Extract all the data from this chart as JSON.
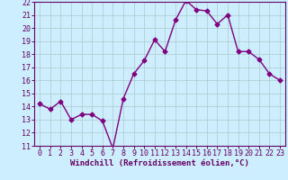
{
  "x": [
    0,
    1,
    2,
    3,
    4,
    5,
    6,
    7,
    8,
    9,
    10,
    11,
    12,
    13,
    14,
    15,
    16,
    17,
    18,
    19,
    20,
    21,
    22,
    23
  ],
  "y": [
    14.2,
    13.8,
    14.4,
    13.0,
    13.4,
    13.4,
    12.9,
    10.8,
    14.6,
    16.5,
    17.5,
    19.1,
    18.2,
    20.6,
    22.1,
    21.4,
    21.3,
    20.3,
    21.0,
    18.2,
    18.2,
    17.6,
    16.5,
    16.0
  ],
  "line_color": "#800080",
  "marker": "D",
  "marker_size": 2.5,
  "line_width": 1.0,
  "bg_color": "#cceeff",
  "grid_color": "#aacccc",
  "xlabel": "Windchill (Refroidissement éolien,°C)",
  "xlabel_fontsize": 6.5,
  "ylim": [
    11,
    22
  ],
  "xlim": [
    -0.5,
    23.5
  ],
  "yticks": [
    11,
    12,
    13,
    14,
    15,
    16,
    17,
    18,
    19,
    20,
    21,
    22
  ],
  "xticks": [
    0,
    1,
    2,
    3,
    4,
    5,
    6,
    7,
    8,
    9,
    10,
    11,
    12,
    13,
    14,
    15,
    16,
    17,
    18,
    19,
    20,
    21,
    22,
    23
  ],
  "tick_fontsize": 6.0
}
